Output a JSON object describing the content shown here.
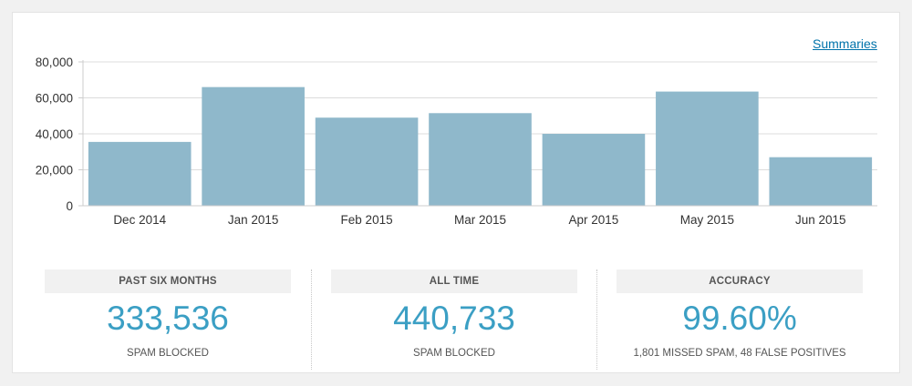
{
  "header": {
    "summaries_link": "Summaries"
  },
  "chart_data": {
    "type": "bar",
    "categories": [
      "Dec 2014",
      "Jan 2015",
      "Feb 2015",
      "Mar 2015",
      "Apr 2015",
      "May 2015",
      "Jun 2015"
    ],
    "values": [
      35500,
      66000,
      49000,
      51500,
      40000,
      63500,
      27000
    ],
    "yticks": [
      0,
      20000,
      40000,
      60000,
      80000
    ],
    "ytick_labels": [
      "0",
      "20,000",
      "40,000",
      "60,000",
      "80,000"
    ],
    "ylim": [
      0,
      80000
    ],
    "grid": true,
    "bar_color": "#8fb8cb",
    "title": "",
    "xlabel": "",
    "ylabel": ""
  },
  "stats": [
    {
      "heading": "PAST SIX MONTHS",
      "value": "333,536",
      "caption": "SPAM BLOCKED"
    },
    {
      "heading": "ALL TIME",
      "value": "440,733",
      "caption": "SPAM BLOCKED"
    },
    {
      "heading": "ACCURACY",
      "value": "99.60%",
      "caption": "1,801 MISSED SPAM, 48 FALSE POSITIVES"
    }
  ],
  "colors": {
    "accent": "#3b9fc4",
    "link": "#0073aa"
  }
}
